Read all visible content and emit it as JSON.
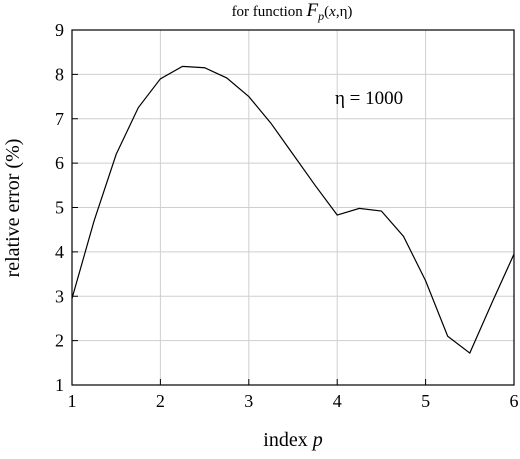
{
  "chart_data": {
    "type": "line",
    "title_prefix": "for function ",
    "title_func": "F",
    "title_sub": "p",
    "title_args_open": "(",
    "title_arg_x": "x",
    "title_args_rest": ",η)",
    "xlabel_prefix": "index ",
    "xlabel_var": "p",
    "ylabel": "relative error (%)",
    "xlim": [
      1,
      6
    ],
    "ylim": [
      1,
      9
    ],
    "xticks": [
      "1",
      "2",
      "3",
      "4",
      "5",
      "6"
    ],
    "yticks": [
      "1",
      "2",
      "3",
      "4",
      "5",
      "6",
      "7",
      "8",
      "9"
    ],
    "grid": true,
    "annotation": "η = 1000",
    "series": [
      {
        "x": [
          1.0,
          1.25,
          1.5,
          1.75,
          2.0,
          2.25,
          2.5,
          2.75,
          3.0,
          3.25,
          3.5,
          3.75,
          4.0,
          4.25,
          4.5,
          4.75,
          5.0,
          5.25,
          5.5,
          5.75,
          6.0
        ],
        "y": [
          2.95,
          4.7,
          6.2,
          7.25,
          7.9,
          8.18,
          8.15,
          7.92,
          7.5,
          6.9,
          6.2,
          5.5,
          4.83,
          4.98,
          4.92,
          4.35,
          3.35,
          2.1,
          1.72,
          2.85,
          3.95
        ],
        "color": "#000000"
      }
    ]
  }
}
